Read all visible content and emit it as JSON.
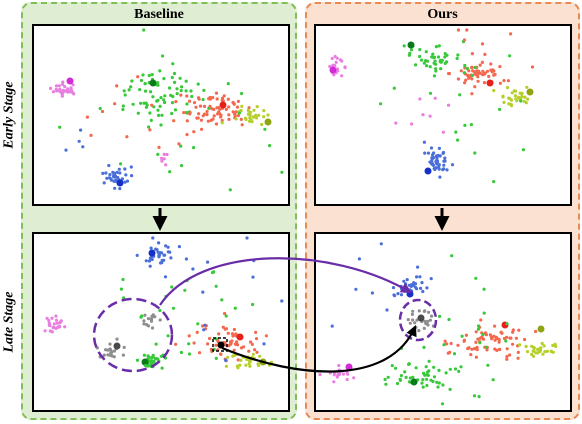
{
  "panels": {
    "baseline": {
      "title": "Baseline"
    },
    "ours": {
      "title": "Ours"
    }
  },
  "stages": {
    "early": "Early Stage",
    "late": "Late Stage"
  },
  "colors": {
    "pink": "#e87fe0",
    "magenta": "#d22ad6",
    "green": "#38c93a",
    "dark_green": "#0a7a1a",
    "salmon": "#f4684f",
    "red": "#e8201a",
    "lime": "#b6cf2a",
    "olive": "#8fa410",
    "blue": "#4a6fd9",
    "navy": "#1530c8",
    "gray": "#8e8e8e",
    "dark_gray": "#4a4a4a",
    "purple_arrow": "#6a2da8",
    "baseline_bg": "#dfedd3",
    "ours_bg": "#fbe1d2"
  }
}
